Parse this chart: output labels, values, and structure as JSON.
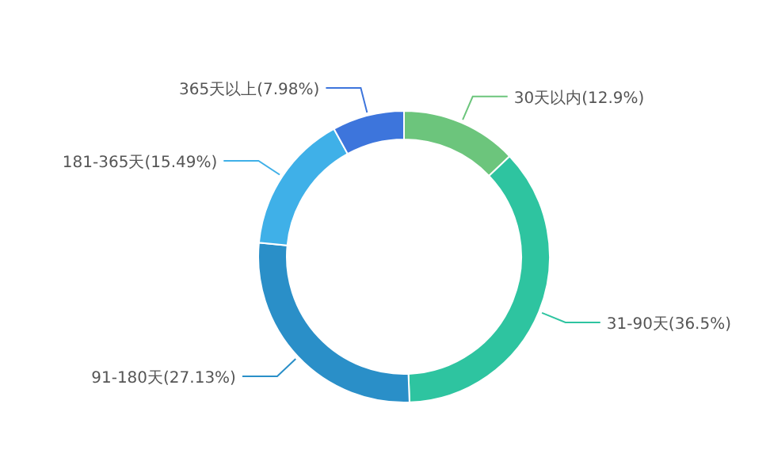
{
  "chart_data": {
    "type": "donut",
    "categories": [
      "30天以内",
      "31-90天",
      "91-180天",
      "181-365天",
      "365天以上"
    ],
    "values": [
      12.9,
      36.5,
      27.13,
      15.49,
      7.98
    ],
    "value_labels": [
      "(12.9%)",
      "(36.5%)",
      "(27.13%)",
      "(15.49%)",
      "(7.98%)"
    ],
    "colors": [
      "#6cc57c",
      "#2ec4a0",
      "#2a8fc8",
      "#3fb0e8",
      "#3d75dc"
    ]
  }
}
